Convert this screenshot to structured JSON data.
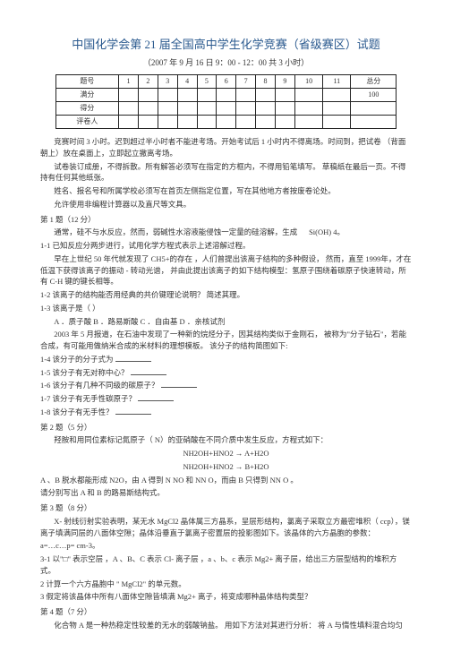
{
  "title": "中国化学会第  21 届全国高中学生化学竞赛（省级赛区）试题",
  "subtitle": "（2007 年 9 月 16 日  9：00 - 12：00 共 3 小时）",
  "table": {
    "headers": [
      "题号",
      "1",
      "2",
      "3",
      "4",
      "5",
      "6",
      "7",
      "8",
      "9",
      "10",
      "11",
      "总分"
    ],
    "rows": [
      "满分",
      "得分",
      "评卷人"
    ]
  },
  "instructions": [
    "竞赛时间  3 小时。迟到超过半小时者不能进考场。开始考试后  1 小时内不得离场。时间到，把试卷  （背面朝上）放在桌面上，立即起立撤离考场。",
    "试卷装订成册，不得拆散。所有解答必须写在指定的方框内，不得用铅笔填写。 草稿纸在最后一页。不得持有任何其他纸张。",
    "   姓名、报名号和所属学校必须写在首页左侧指定位置，写在其他地方者按废卷论处。",
    "允许使用非编程计算器以及直尺等文具。"
  ],
  "q1": {
    "heading": "第 1 题（12 分）",
    "intro": "通常，硅不与水反应，然而，弱碱性水溶液能侵蚀一定量的硅溶解，生成",
    "intro_tail": "Si(OH) 4。",
    "q1_1": "1-1  已知反应分两步进行，试用化学方程式表示上述溶解过程。",
    "context11": "早在上世纪  50 年代就发现了  CH5+的存在 ，人们曾提出该离子结构的多种假设，  然而，直至  1999年，才在低温下获得该离子的振动  - 转动光谱， 并由此提出该离子的如下结构模型：氢原子围绕着碳原子快速转动，所有  C-H 键的键长相等。",
    "q1_2": "1-2  该离子的结构能否用经典的共价键理论说明？  简述其理。",
    "q1_3_a": "1-3  该离子是（  ）",
    "q1_3_b": "A ．质子酸  B ．路易斯酸  C ．自由基  D ．亲核试剂",
    "context13": "2003 年 5 月报道，在石油中发现了一种新的烷烃分子，因其结构类似于金刚石，  被称为\"分子钻石\"，若能合成，有可能用做纳米合成的米材料的理想模板。  该分子的结构简图如下:",
    "q1_4": "1-4  该分子的分子式为 ",
    "q1_5": "1-5  该分子有无对称中心？ ",
    "q1_6": "1-6  该分子有几种不同级的碳原子？ ",
    "q1_7": "1-7  该分子有无手性碳原子？ ",
    "q1_8": "1-8  该分子有无手性？ "
  },
  "q2": {
    "heading": "第 2 题（5 分）",
    "intro": "羟胺和用同位素标记氮原子（  N）的亚硝酸在不同介质中发生反应，方程式如下：",
    "eq1": "NH2OH+HNO2 → A+H2O",
    "eq2": "NH2OH+HNO2 → B+H2O",
    "line2": "A 、B 脱水都能形成  N2O，由 A 得到  N NO 和 NN O，而由  B 只得到  NN O 。",
    "line3": "请分别写出  A 和 B 的路易斯结构式。"
  },
  "q3": {
    "heading": "第 3 题（8 分）",
    "intro": "X- 射线衍射实验表明，某无水  MgCl2 晶体属三方晶系，呈层形结构，氯离子采取立方最密堆积（  ccp），镁离子填满同层的八面体空隙；晶体沿垂直于氯离子密置层的投影图如下。该晶体的六方晶胞的参数：",
    "param": "a=…c…p=  cm-3。",
    "q3_1": "3-1  以\"□\" 表示空层  ，A 、B、C 表示 Cl- 离子层  ，a 、b、c 表示  Mg2+ 离子层，给出三方层型结构的堆积方式。",
    "q3_2": "2 计算一个六方晶胞中  \" MgCl2\" 的单元数。",
    "q3_3": "3 假定将该晶体中所有八面体空隙皆填满  Mg2+ 离子，将变成哪种晶体结构类型？"
  },
  "q4": {
    "heading": "第 4 题（7 分）",
    "intro": "化合物 A 是一种热稳定性较差的无水的弱酸钠盐。  用如下方法对其进行分析：  将 A 与惰性填料混合均匀"
  }
}
